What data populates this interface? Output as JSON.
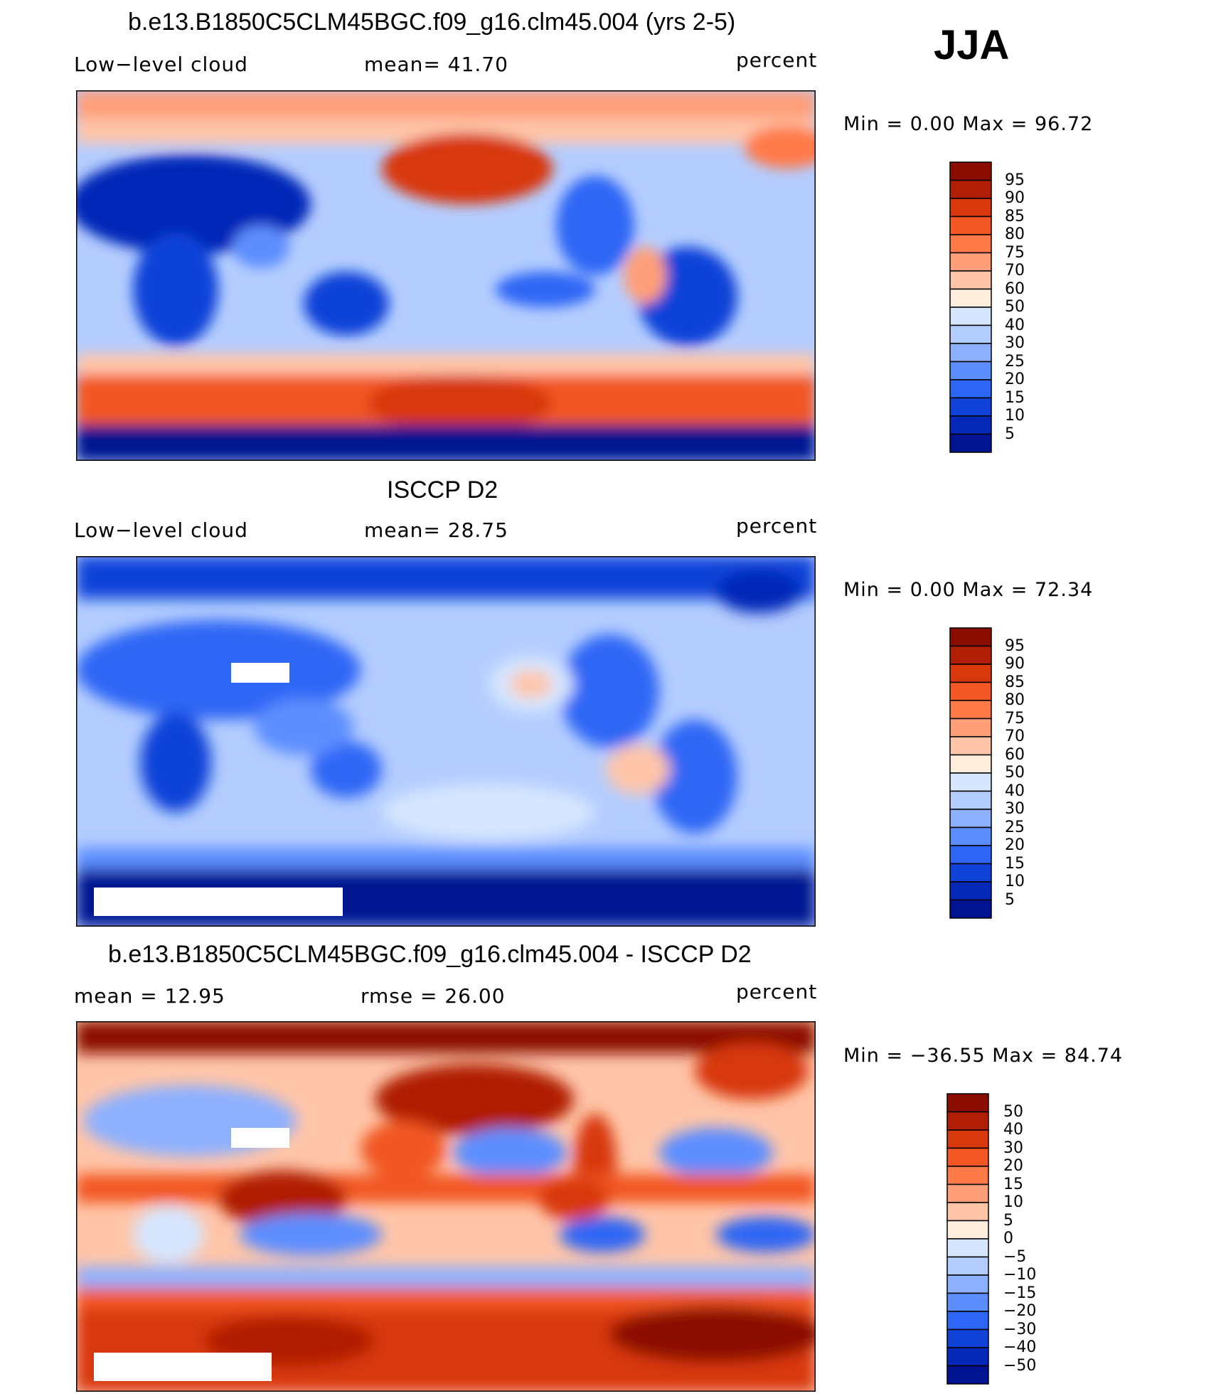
{
  "season": "JJA",
  "panels": [
    {
      "title": "b.e13.B1850C5CLM45BGC.f09_g16.clm45.004 (yrs 2-5)",
      "left_label": "Low−level cloud",
      "mid_label": "mean=   41.70",
      "right_label": "percent",
      "stats": "Min  =     0.00  Max  =    96.72"
    },
    {
      "title": "ISCCP D2",
      "left_label": "Low−level cloud",
      "mid_label": "mean=   28.75",
      "right_label": "percent",
      "stats": "Min  =     0.00  Max  =    72.34"
    },
    {
      "title": "b.e13.B1850C5CLM45BGC.f09_g16.clm45.004 - ISCCP D2",
      "left_label": "mean  =    12.95",
      "mid_label": "rmse  =    26.00",
      "right_label": "percent",
      "stats": "Min  = −36.55  Max  =    84.74"
    }
  ],
  "colorbar_abs": {
    "labels": [
      "95",
      "90",
      "85",
      "80",
      "75",
      "70",
      "60",
      "50",
      "40",
      "30",
      "25",
      "20",
      "15",
      "10",
      "5"
    ],
    "colors": [
      "#8b0d00",
      "#b01e05",
      "#d8390c",
      "#f25724",
      "#ff7a48",
      "#ff9f79",
      "#ffc5a8",
      "#ffeedd",
      "#d6e6ff",
      "#b4cdff",
      "#8db0ff",
      "#5d8eff",
      "#2d66f5",
      "#1042d8",
      "#0628b8",
      "#011390"
    ]
  },
  "colorbar_diff": {
    "labels": [
      "50",
      "40",
      "30",
      "20",
      "15",
      "10",
      "5",
      "0",
      "−5",
      "−10",
      "−15",
      "−20",
      "−30",
      "−40",
      "−50"
    ],
    "colors": [
      "#8b0d00",
      "#b01e05",
      "#d8390c",
      "#f25724",
      "#ff7a48",
      "#ff9f79",
      "#ffc5a8",
      "#ffeedd",
      "#d6e6ff",
      "#b4cdff",
      "#8db0ff",
      "#5d8eff",
      "#2d66f5",
      "#1042d8",
      "#0628b8",
      "#011390"
    ]
  },
  "chart_data": [
    {
      "type": "heatmap",
      "title": "b.e13.B1850C5CLM45BGC.f09_g16.clm45.004 (yrs 2-5)",
      "variable": "Low-level cloud",
      "units": "percent",
      "mean": 41.7,
      "min": 0.0,
      "max": 96.72,
      "contour_levels": [
        5,
        10,
        15,
        20,
        25,
        30,
        40,
        50,
        60,
        70,
        75,
        80,
        85,
        90,
        95
      ]
    },
    {
      "type": "heatmap",
      "title": "ISCCP D2",
      "variable": "Low-level cloud",
      "units": "percent",
      "mean": 28.75,
      "min": 0.0,
      "max": 72.34,
      "contour_levels": [
        5,
        10,
        15,
        20,
        25,
        30,
        40,
        50,
        60,
        70,
        75,
        80,
        85,
        90,
        95
      ]
    },
    {
      "type": "heatmap",
      "title": "b.e13.B1850C5CLM45BGC.f09_g16.clm45.004 - ISCCP D2",
      "units": "percent",
      "mean": 12.95,
      "rmse": 26.0,
      "min": -36.55,
      "max": 84.74,
      "contour_levels": [
        -50,
        -40,
        -30,
        -20,
        -15,
        -10,
        -5,
        0,
        5,
        10,
        15,
        20,
        30,
        40,
        50
      ]
    }
  ]
}
